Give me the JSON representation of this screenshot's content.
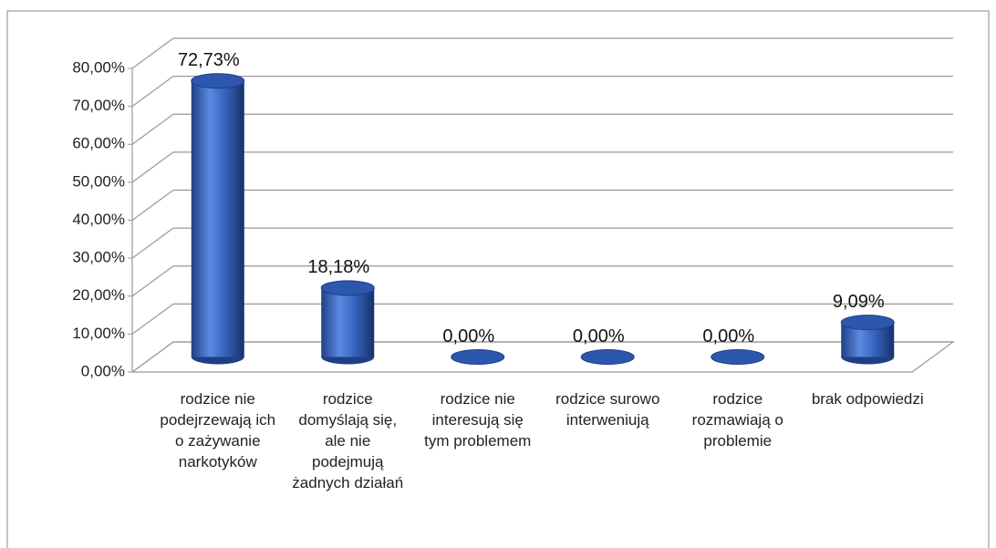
{
  "chart_data": {
    "type": "bar3d",
    "categories": [
      "rodzice nie podejrzewają ich o zażywanie narkotyków",
      "rodzice domyślają się, ale nie podejmują żadnych działań",
      "rodzice nie interesują się tym problemem",
      "rodzice surowo interweniują",
      "rodzice rozmawiają o problemie",
      "brak odpowiedzi"
    ],
    "values": [
      72.73,
      18.18,
      0,
      0,
      0,
      9.09
    ],
    "value_labels": [
      "72,73%",
      "18,18%",
      "0,00%",
      "0,00%",
      "0,00%",
      "9,09%"
    ],
    "color": "#3a68c4",
    "ylim": [
      0,
      80
    ],
    "yticks": [
      {
        "value": 0,
        "label": "0,00%"
      },
      {
        "value": 10,
        "label": "10,00%"
      },
      {
        "value": 20,
        "label": "20,00%"
      },
      {
        "value": 30,
        "label": "30,00%"
      },
      {
        "value": 40,
        "label": "40,00%"
      },
      {
        "value": 50,
        "label": "50,00%"
      },
      {
        "value": 60,
        "label": "60,00%"
      },
      {
        "value": 70,
        "label": "70,00%"
      },
      {
        "value": 80,
        "label": "80,00%"
      }
    ],
    "grid": true
  }
}
